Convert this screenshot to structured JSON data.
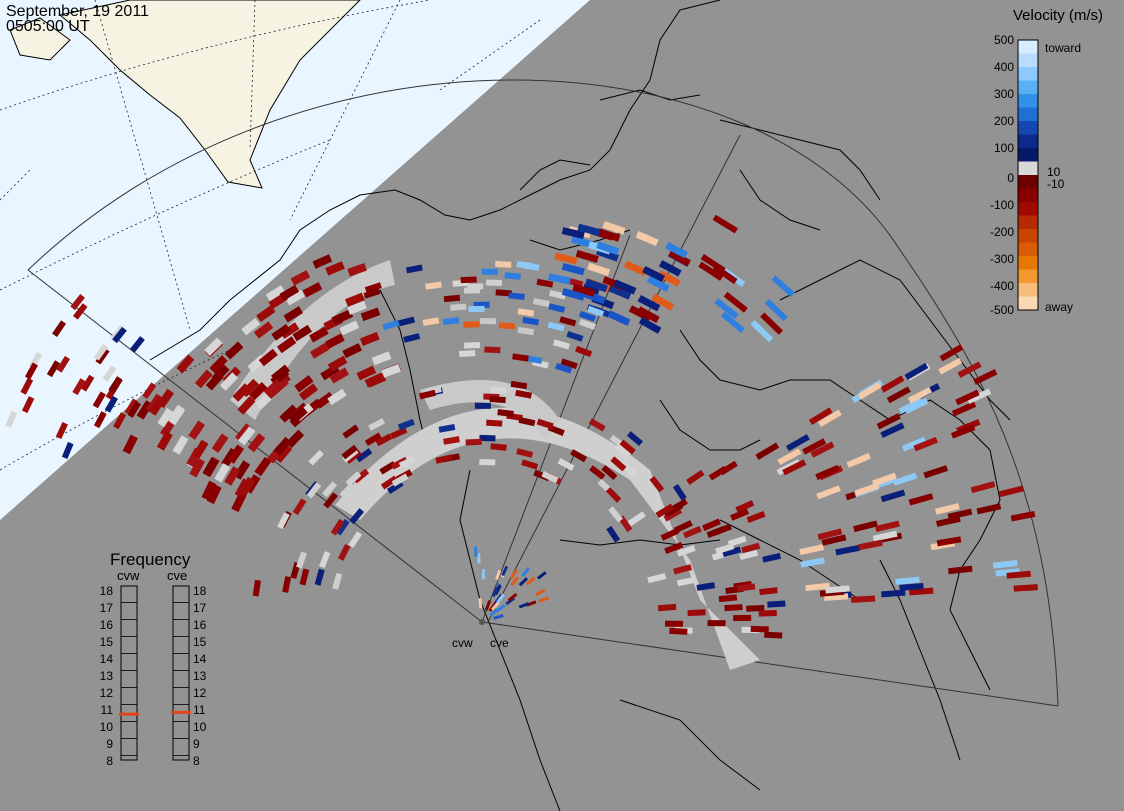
{
  "header": {
    "date": "September, 19 2011",
    "time": "0505:00 UT"
  },
  "velocity_scale": {
    "title": "Velocity (m/s)",
    "ticks": [
      "500",
      "400",
      "300",
      "200",
      "100",
      "10",
      "0",
      "-10",
      "-100",
      "-200",
      "-300",
      "-400",
      "-500"
    ],
    "toward_label": "toward",
    "away_label": "away",
    "colors": [
      "#d8ecff",
      "#b7dcff",
      "#8dc8ff",
      "#5ab0f5",
      "#3390e8",
      "#1f6fd4",
      "#1448b0",
      "#0d2a8a",
      "#061a6a",
      "#d8d8d8",
      "#6e0000",
      "#880000",
      "#a00a00",
      "#b52a00",
      "#c84400",
      "#d85c00",
      "#e67800",
      "#f29a30",
      "#f7bc7a",
      "#fbd8b4"
    ]
  },
  "radars": [
    {
      "label": "cvw"
    },
    {
      "label": "cve"
    }
  ],
  "frequency": {
    "title": "Frequency",
    "left_label": "cvw",
    "right_label": "cve",
    "levels": [
      "18",
      "17",
      "16",
      "15",
      "14",
      "13",
      "12",
      "11",
      "10",
      "9",
      "8"
    ],
    "cvw_mhz": 10.7,
    "cve_mhz": 10.8,
    "marker_color": "#e0451a"
  }
}
